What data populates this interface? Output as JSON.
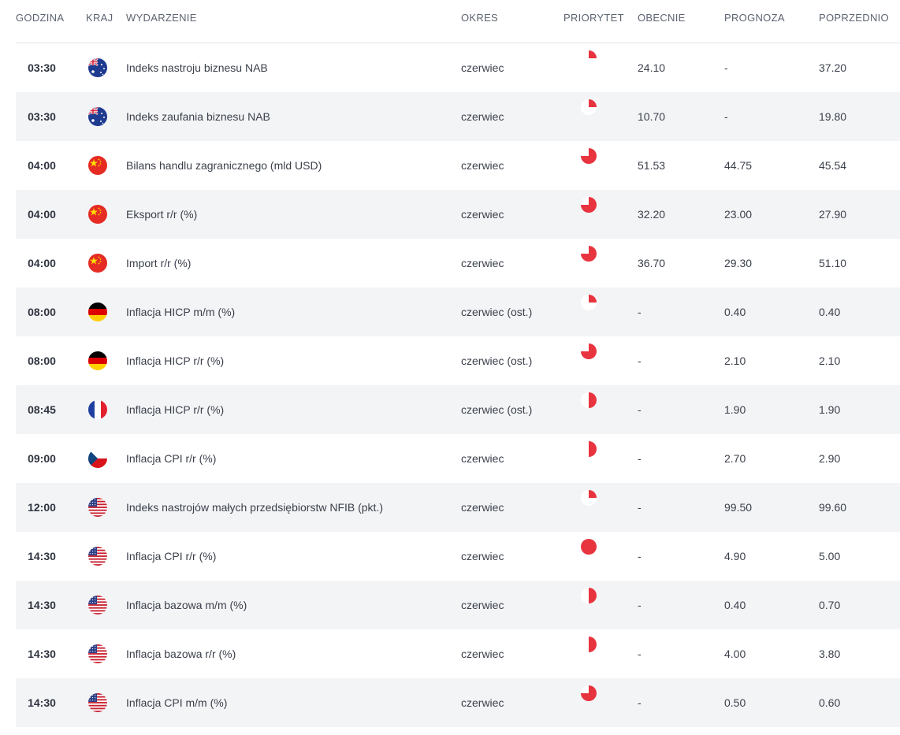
{
  "headers": {
    "time": "GODZINA",
    "country": "KRAJ",
    "event": "WYDARZENIE",
    "period": "OKRES",
    "priority": "PRIORYTET",
    "actual": "OBECNIE",
    "forecast": "PROGNOZA",
    "previous": "POPRZEDNIO"
  },
  "colors": {
    "priority_red": "#e8343f",
    "row_alt": "#f3f4f6"
  },
  "rows": [
    {
      "time": "03:30",
      "country": "australia-flag-icon",
      "event": "Indeks nastroju biznesu NAB",
      "period": "czerwiec",
      "priority": 0.25,
      "actual": "24.10",
      "forecast": "-",
      "previous": "37.20"
    },
    {
      "time": "03:30",
      "country": "australia-flag-icon",
      "event": "Indeks zaufania biznesu NAB",
      "period": "czerwiec",
      "priority": 0.25,
      "actual": "10.70",
      "forecast": "-",
      "previous": "19.80"
    },
    {
      "time": "04:00",
      "country": "china-flag-icon",
      "event": "Bilans handlu zagranicznego (mld USD)",
      "period": "czerwiec",
      "priority": 0.75,
      "actual": "51.53",
      "forecast": "44.75",
      "previous": "45.54"
    },
    {
      "time": "04:00",
      "country": "china-flag-icon",
      "event": "Eksport r/r (%)",
      "period": "czerwiec",
      "priority": 0.75,
      "actual": "32.20",
      "forecast": "23.00",
      "previous": "27.90"
    },
    {
      "time": "04:00",
      "country": "china-flag-icon",
      "event": "Import r/r (%)",
      "period": "czerwiec",
      "priority": 0.75,
      "actual": "36.70",
      "forecast": "29.30",
      "previous": "51.10"
    },
    {
      "time": "08:00",
      "country": "germany-flag-icon",
      "event": "Inflacja HICP m/m (%)",
      "period": "czerwiec (ost.)",
      "priority": 0.25,
      "actual": "-",
      "forecast": "0.40",
      "previous": "0.40"
    },
    {
      "time": "08:00",
      "country": "germany-flag-icon",
      "event": "Inflacja HICP r/r (%)",
      "period": "czerwiec (ost.)",
      "priority": 0.75,
      "actual": "-",
      "forecast": "2.10",
      "previous": "2.10"
    },
    {
      "time": "08:45",
      "country": "france-flag-icon",
      "event": "Inflacja HICP r/r (%)",
      "period": "czerwiec (ost.)",
      "priority": 0.5,
      "actual": "-",
      "forecast": "1.90",
      "previous": "1.90"
    },
    {
      "time": "09:00",
      "country": "czech-flag-icon",
      "event": "Inflacja CPI r/r (%)",
      "period": "czerwiec",
      "priority": 0.5,
      "actual": "-",
      "forecast": "2.70",
      "previous": "2.90"
    },
    {
      "time": "12:00",
      "country": "usa-flag-icon",
      "event": "Indeks nastrojów małych przedsiębiorstw NFIB (pkt.)",
      "period": "czerwiec",
      "priority": 0.25,
      "actual": "-",
      "forecast": "99.50",
      "previous": "99.60"
    },
    {
      "time": "14:30",
      "country": "usa-flag-icon",
      "event": "Inflacja CPI r/r (%)",
      "period": "czerwiec",
      "priority": 1.0,
      "actual": "-",
      "forecast": "4.90",
      "previous": "5.00"
    },
    {
      "time": "14:30",
      "country": "usa-flag-icon",
      "event": "Inflacja bazowa m/m (%)",
      "period": "czerwiec",
      "priority": 0.5,
      "actual": "-",
      "forecast": "0.40",
      "previous": "0.70"
    },
    {
      "time": "14:30",
      "country": "usa-flag-icon",
      "event": "Inflacja bazowa r/r (%)",
      "period": "czerwiec",
      "priority": 0.5,
      "actual": "-",
      "forecast": "4.00",
      "previous": "3.80"
    },
    {
      "time": "14:30",
      "country": "usa-flag-icon",
      "event": "Inflacja CPI m/m (%)",
      "period": "czerwiec",
      "priority": 0.75,
      "actual": "-",
      "forecast": "0.50",
      "previous": "0.60"
    }
  ]
}
